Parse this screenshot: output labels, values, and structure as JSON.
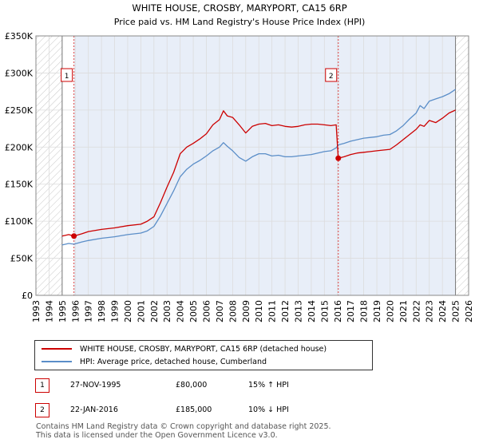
{
  "chart_data": {
    "type": "line",
    "title": "WHITE HOUSE, CROSBY, MARYPORT, CA15 6RP",
    "subtitle": "Price paid vs. HM Land Registry's House Price Index (HPI)",
    "xlim": [
      1993,
      2026
    ],
    "ylim": [
      0,
      350000
    ],
    "y_ticks": [
      0,
      50000,
      100000,
      150000,
      200000,
      250000,
      300000,
      350000
    ],
    "y_tick_labels": [
      "£0",
      "£50K",
      "£100K",
      "£150K",
      "£200K",
      "£250K",
      "£300K",
      "£350K"
    ],
    "x_ticks": [
      1993,
      1994,
      1995,
      1996,
      1997,
      1998,
      1999,
      2000,
      2001,
      2002,
      2003,
      2004,
      2005,
      2006,
      2007,
      2008,
      2009,
      2010,
      2011,
      2012,
      2013,
      2014,
      2015,
      2016,
      2017,
      2018,
      2019,
      2020,
      2021,
      2022,
      2023,
      2024,
      2025,
      2026
    ],
    "x_tick_labels": [
      "1993",
      "1994",
      "1995",
      "1996",
      "1997",
      "1998",
      "1999",
      "2000",
      "2001",
      "2002",
      "2003",
      "2004",
      "2005",
      "2006",
      "2007",
      "2008",
      "2009",
      "2010",
      "2011",
      "2012",
      "2013",
      "2014",
      "2015",
      "2016",
      "2017",
      "2018",
      "2019",
      "2020",
      "2021",
      "2022",
      "2023",
      "2024",
      "2025",
      "2026"
    ],
    "shaded_range": [
      1995.9,
      2025.0
    ],
    "hatched_ranges": [
      [
        1993,
        1995.0
      ],
      [
        2025.0,
        2026
      ]
    ],
    "series": [
      {
        "name": "WHITE HOUSE, CROSBY, MARYPORT, CA15 6RP (detached house)",
        "color": "#cc0000",
        "x": [
          1995.0,
          1995.5,
          1995.9,
          1996.5,
          1997,
          1998,
          1999,
          2000,
          2001,
          2001.5,
          2002,
          2002.5,
          2003,
          2003.5,
          2004,
          2004.5,
          2005,
          2005.5,
          2006,
          2006.5,
          2007,
          2007.3,
          2007.6,
          2008,
          2008.5,
          2009,
          2009.5,
          2010,
          2010.5,
          2011,
          2011.5,
          2012,
          2012.5,
          2013,
          2013.5,
          2014,
          2014.5,
          2015,
          2015.5,
          2015.9,
          2016.06,
          2016.5,
          2017,
          2017.5,
          2018,
          2018.5,
          2019,
          2019.5,
          2020,
          2020.5,
          2021,
          2021.5,
          2022,
          2022.3,
          2022.6,
          2023,
          2023.5,
          2024,
          2024.5,
          2025.0
        ],
        "y": [
          80000,
          82000,
          80000,
          83000,
          86000,
          89000,
          91000,
          94000,
          96000,
          100000,
          106000,
          125000,
          146000,
          166000,
          191000,
          200000,
          205000,
          211000,
          218000,
          230000,
          237000,
          249000,
          242000,
          240000,
          230000,
          219000,
          228000,
          231000,
          232000,
          229000,
          230000,
          228000,
          227000,
          228000,
          230000,
          231000,
          231000,
          230000,
          229000,
          230000,
          185000,
          187000,
          190000,
          192000,
          193000,
          194000,
          195000,
          196000,
          197000,
          203000,
          210000,
          217000,
          224000,
          230000,
          228000,
          236000,
          233000,
          239000,
          246000,
          250000
        ]
      },
      {
        "name": "HPI: Average price, detached house, Cumberland",
        "color": "#5b8ec8",
        "x": [
          1995.0,
          1995.5,
          1995.9,
          1996.5,
          1997,
          1998,
          1999,
          2000,
          2001,
          2001.5,
          2002,
          2002.5,
          2003,
          2003.5,
          2004,
          2004.5,
          2005,
          2005.5,
          2006,
          2006.5,
          2007,
          2007.3,
          2007.6,
          2008,
          2008.5,
          2009,
          2009.5,
          2010,
          2010.5,
          2011,
          2011.5,
          2012,
          2012.5,
          2013,
          2013.5,
          2014,
          2014.5,
          2015,
          2015.5,
          2015.9,
          2016.06,
          2016.5,
          2017,
          2017.5,
          2018,
          2018.5,
          2019,
          2019.5,
          2020,
          2020.5,
          2021,
          2021.5,
          2022,
          2022.3,
          2022.6,
          2023,
          2023.5,
          2024,
          2024.5,
          2025.0
        ],
        "y": [
          68000,
          70000,
          69000,
          72000,
          74000,
          77000,
          79000,
          82000,
          84000,
          87000,
          93000,
          107000,
          124000,
          141000,
          160000,
          170000,
          177000,
          182000,
          188000,
          195000,
          200000,
          206000,
          201000,
          195000,
          186000,
          181000,
          187000,
          191000,
          191000,
          188000,
          189000,
          187000,
          187000,
          188000,
          189000,
          190000,
          192000,
          194000,
          195000,
          199000,
          203000,
          205000,
          208000,
          210000,
          212000,
          213000,
          214000,
          216000,
          217000,
          222000,
          229000,
          238000,
          246000,
          256000,
          252000,
          262000,
          265000,
          268000,
          272000,
          278000
        ]
      }
    ],
    "annotations": [
      {
        "label": "1",
        "x": 1995.9,
        "y": 80000
      },
      {
        "label": "2",
        "x": 2016.06,
        "y": 185000
      }
    ]
  },
  "legend": {
    "items": [
      {
        "label": "WHITE HOUSE, CROSBY, MARYPORT, CA15 6RP (detached house)",
        "color": "#cc0000"
      },
      {
        "label": "HPI: Average price, detached house, Cumberland",
        "color": "#5b8ec8"
      }
    ]
  },
  "transactions": [
    {
      "num": "1",
      "date": "27-NOV-1995",
      "price": "£80,000",
      "hpi": "15% ↑ HPI"
    },
    {
      "num": "2",
      "date": "22-JAN-2016",
      "price": "£185,000",
      "hpi": "10% ↓ HPI"
    }
  ],
  "footer": {
    "line1": "Contains HM Land Registry data © Crown copyright and database right 2025.",
    "line2": "This data is licensed under the Open Government Licence v3.0."
  },
  "colors": {
    "red": "#cc0000",
    "blue": "#5b8ec8",
    "shade": "#e8eef8"
  }
}
